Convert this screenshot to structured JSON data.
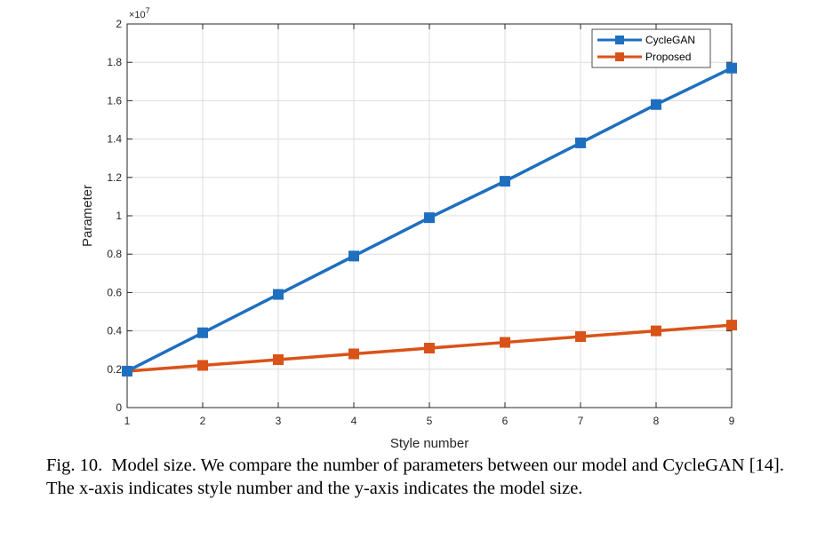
{
  "chart_data": {
    "type": "line",
    "x": [
      1,
      2,
      3,
      4,
      5,
      6,
      7,
      8,
      9
    ],
    "series": [
      {
        "name": "CycleGAN",
        "color": "#1f6fbf",
        "marker": "square",
        "values": [
          0.19,
          0.39,
          0.59,
          0.79,
          0.99,
          1.18,
          1.38,
          1.58,
          1.77
        ]
      },
      {
        "name": "Proposed",
        "color": "#d95319",
        "marker": "square",
        "values": [
          0.19,
          0.22,
          0.25,
          0.28,
          0.31,
          0.34,
          0.37,
          0.4,
          0.43
        ]
      }
    ],
    "xlabel": "Style number",
    "ylabel": "Parameter",
    "y_multiplier": "×10",
    "y_multiplier_exponent": "7",
    "xlim": [
      1,
      9
    ],
    "ylim": [
      0,
      2
    ],
    "xticks": [
      "1",
      "2",
      "3",
      "4",
      "5",
      "6",
      "7",
      "8",
      "9"
    ],
    "yticks": [
      "0",
      "0.2",
      "0.4",
      "0.6",
      "0.8",
      "1",
      "1.2",
      "1.4",
      "1.6",
      "1.8",
      "2"
    ],
    "grid": true,
    "legend_position": "top-right"
  },
  "caption": {
    "label": "Fig. 10.",
    "text": "Model size. We compare the number of parameters between our model and CycleGAN [14]. The x-axis indicates style number and the y-axis indicates the model size."
  }
}
